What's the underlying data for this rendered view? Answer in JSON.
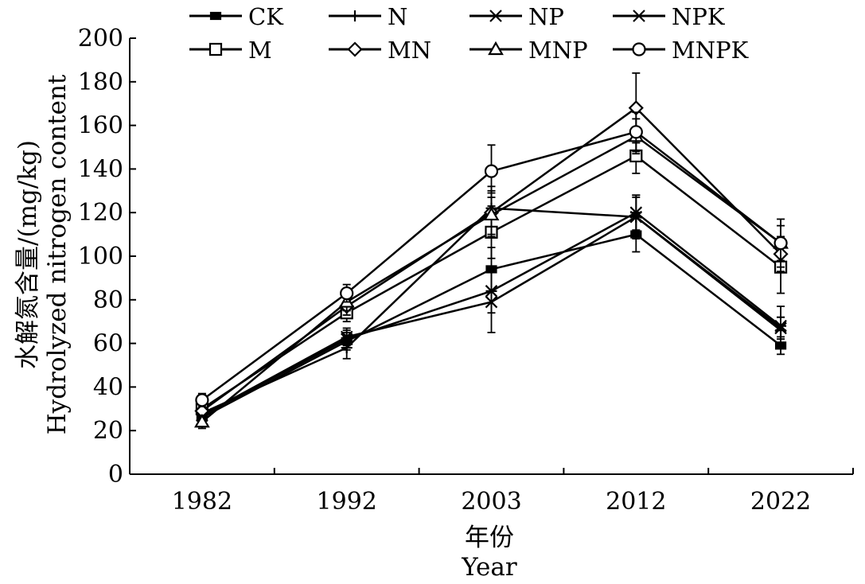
{
  "chart_data": {
    "type": "line",
    "ylabel": "水解氮含量/(mg/kg)",
    "ylabel2": "Hydrolyzed nitrogen content",
    "xlabel": "年份",
    "xlabel2": "Year",
    "categories": [
      "1982",
      "1992",
      "2003",
      "2012",
      "2022"
    ],
    "ylim": [
      0,
      200
    ],
    "yticks": [
      0,
      20,
      40,
      60,
      80,
      100,
      120,
      140,
      160,
      180,
      200
    ],
    "legend_position": "top",
    "series": [
      {
        "name": "CK",
        "marker": "filled-square",
        "values": [
          26,
          61,
          94,
          110,
          59
        ],
        "errors": [
          3,
          4,
          10,
          8,
          4
        ]
      },
      {
        "name": "N",
        "marker": "plus",
        "values": [
          28,
          58,
          122,
          118,
          66
        ],
        "errors": [
          3,
          5,
          10,
          9,
          6
        ]
      },
      {
        "name": "NP",
        "marker": "x",
        "values": [
          27,
          63,
          79,
          118,
          67
        ],
        "errors": [
          3,
          4,
          14,
          10,
          5
        ]
      },
      {
        "name": "NPK",
        "marker": "star",
        "values": [
          27,
          62,
          84,
          120,
          68
        ],
        "errors": [
          3,
          4,
          10,
          8,
          9
        ]
      },
      {
        "name": "M",
        "marker": "square",
        "values": [
          30,
          74,
          111,
          146,
          95
        ],
        "errors": [
          3,
          4,
          12,
          8,
          12
        ]
      },
      {
        "name": "MN",
        "marker": "diamond",
        "values": [
          29,
          77,
          120,
          168,
          101
        ],
        "errors": [
          3,
          4,
          10,
          16,
          8
        ]
      },
      {
        "name": "MNP",
        "marker": "triangle",
        "values": [
          24,
          79,
          119,
          155,
          106
        ],
        "errors": [
          3,
          4,
          10,
          8,
          8
        ]
      },
      {
        "name": "MNPK",
        "marker": "circle",
        "values": [
          34,
          83,
          139,
          157,
          106
        ],
        "errors": [
          3,
          4,
          12,
          9,
          11
        ]
      }
    ]
  }
}
